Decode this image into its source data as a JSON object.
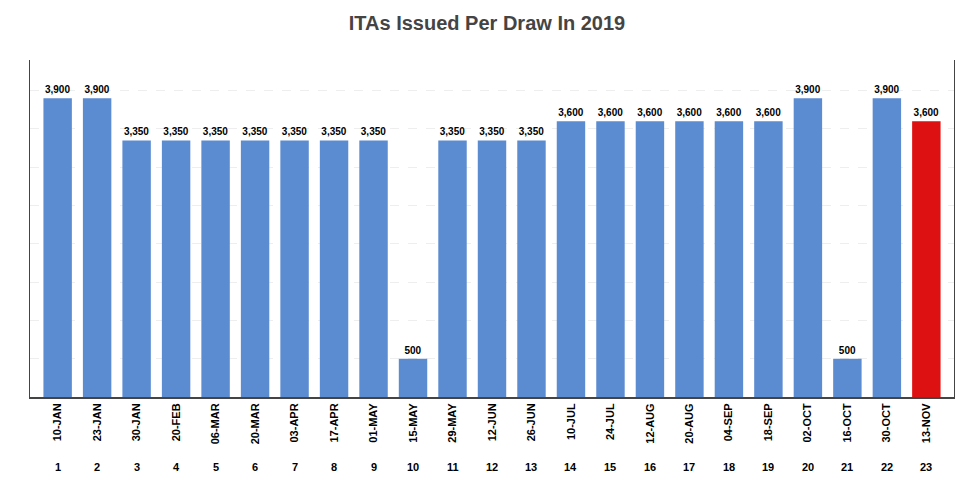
{
  "chart_data": {
    "type": "bar",
    "title": "ITAs Issued Per Draw In 2019",
    "x": [
      1,
      2,
      3,
      4,
      5,
      6,
      7,
      8,
      9,
      10,
      11,
      12,
      13,
      14,
      15,
      16,
      17,
      18,
      19,
      20,
      21,
      22,
      23
    ],
    "values": [
      3900,
      3900,
      3350,
      3350,
      3350,
      3350,
      3350,
      3350,
      3350,
      500,
      3350,
      3350,
      3350,
      3600,
      3600,
      3600,
      3600,
      3600,
      3600,
      3900,
      500,
      3900,
      3600
    ],
    "value_labels": [
      "3,900",
      "3,900",
      "3,350",
      "3,350",
      "3,350",
      "3,350",
      "3,350",
      "3,350",
      "3,350",
      "500",
      "3,350",
      "3,350",
      "3,350",
      "3,600",
      "3,600",
      "3,600",
      "3,600",
      "3,600",
      "3,600",
      "3,900",
      "500",
      "3,900",
      "3,600"
    ],
    "colors": [
      "#5b8bd0",
      "#5b8bd0",
      "#5b8bd0",
      "#5b8bd0",
      "#5b8bd0",
      "#5b8bd0",
      "#5b8bd0",
      "#5b8bd0",
      "#5b8bd0",
      "#5b8bd0",
      "#5b8bd0",
      "#5b8bd0",
      "#5b8bd0",
      "#5b8bd0",
      "#5b8bd0",
      "#5b8bd0",
      "#5b8bd0",
      "#5b8bd0",
      "#5b8bd0",
      "#5b8bd0",
      "#5b8bd0",
      "#5b8bd0",
      "#dd1111"
    ],
    "xlim": [
      0.3,
      23.7
    ],
    "xticks": [
      {
        "value": 1,
        "label": "10-JAN"
      },
      {
        "value": 2,
        "label": "23-JAN"
      },
      {
        "value": 3,
        "label": "30-JAN"
      },
      {
        "value": 4,
        "label": "20-FEB"
      },
      {
        "value": 5,
        "label": "06-MAR"
      },
      {
        "value": 6,
        "label": "20-MAR"
      },
      {
        "value": 7,
        "label": "03-APR"
      },
      {
        "value": 8,
        "label": "17-APR"
      },
      {
        "value": 9,
        "label": "01-MAY"
      },
      {
        "value": 10,
        "label": "15-MAY"
      },
      {
        "value": 11,
        "label": "29-MAY"
      },
      {
        "value": 12,
        "label": "12-JUN"
      },
      {
        "value": 13,
        "label": "26-JUN"
      },
      {
        "value": 14,
        "label": "10-JUL"
      },
      {
        "value": 15,
        "label": "24-JUL"
      },
      {
        "value": 16,
        "label": "12-AUG"
      },
      {
        "value": 17,
        "label": "20-AUG"
      },
      {
        "value": 18,
        "label": "04-SEP"
      },
      {
        "value": 19,
        "label": "18-SEP"
      },
      {
        "value": 20,
        "label": "02-OCT"
      },
      {
        "value": 21,
        "label": "16-OCT"
      },
      {
        "value": 22,
        "label": "30-OCT"
      },
      {
        "value": 23,
        "label": "13-NOV"
      }
    ],
    "ylim": [
      0,
      4400
    ],
    "yticks": [
      500,
      1000,
      1500,
      2000,
      2500,
      3000,
      3500,
      4000
    ],
    "grid": true,
    "data_labels": true,
    "tick_labels": "x"
  }
}
